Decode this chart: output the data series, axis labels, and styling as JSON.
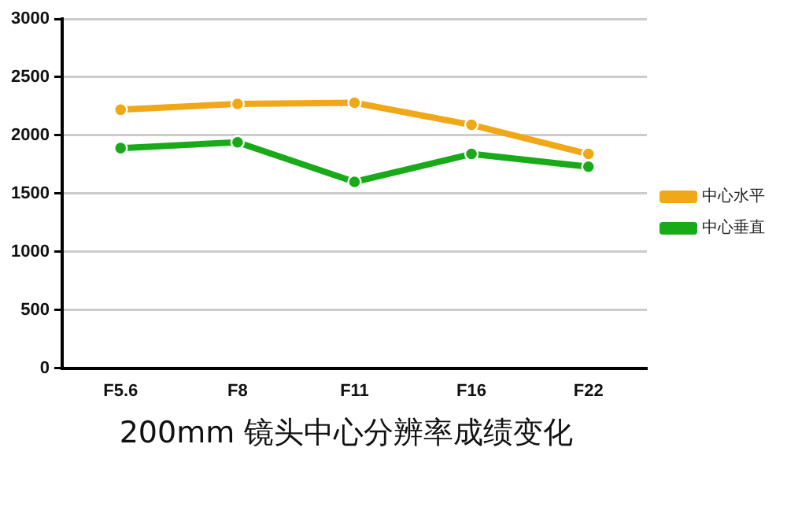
{
  "chart_data": {
    "type": "line",
    "title": "200mm 镜头中心分辨率成绩变化",
    "categories": [
      "F5.6",
      "F8",
      "F11",
      "F16",
      "F22"
    ],
    "series": [
      {
        "name": "中心水平",
        "color": "#f0a818",
        "values": [
          2220,
          2270,
          2280,
          2090,
          1840
        ]
      },
      {
        "name": "中心垂直",
        "color": "#18aa18",
        "values": [
          1890,
          1940,
          1600,
          1840,
          1730
        ]
      }
    ],
    "ylim": [
      0,
      3000
    ],
    "yticks": [
      0,
      500,
      1000,
      1500,
      2000,
      2500,
      3000
    ],
    "grid": "y",
    "legend": "right",
    "marker": "circle"
  }
}
